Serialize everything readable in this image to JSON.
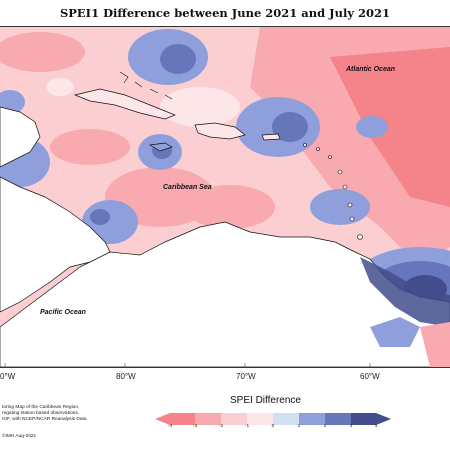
{
  "title": "SPEI1 Difference between June 2021 and July 2021",
  "ocean_labels": {
    "atlantic": "Atlantic Ocean",
    "caribbean": "Caribbean Sea",
    "pacific": "Pacific Ocean"
  },
  "longitude_labels": [
    "0°W",
    "80°W",
    "70°W",
    "60°W"
  ],
  "credits": {
    "line1": "toring Map of the Caribbean Region,",
    "line2": "regating station based observations,",
    "line3": "IOF, with NCEP/NCAR Reanalysis Data",
    "line4": "©IMH Aug-2021"
  },
  "legend": {
    "title": "SPEI Difference",
    "ticks": [
      "-4",
      "-3",
      "-2",
      "-1",
      "0",
      "1",
      "2",
      "3",
      "4"
    ],
    "colors": [
      "#f4838a",
      "#f8aab0",
      "#fbcfd2",
      "#fde6e8",
      "#cfe1ee",
      "#8f9fdc",
      "#6576ba",
      "#424d8c"
    ]
  },
  "colors": {
    "land": "#ffffff",
    "dry_strong": "#f4838a",
    "dry_mod": "#f8aab0",
    "dry_mild": "#fbcfd2",
    "near_normal": "#fde6e8",
    "wet_mild": "#cfe1ee",
    "wet_mod": "#8f9fdc",
    "wet_strong": "#6576ba",
    "wet_extreme": "#424d8c",
    "extra_wet": "#6b8a8c"
  }
}
